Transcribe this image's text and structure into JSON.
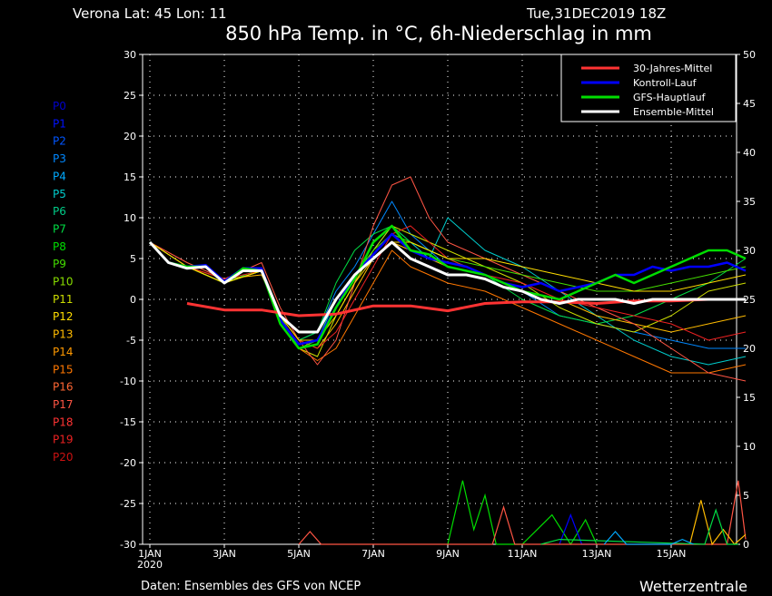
{
  "header": {
    "location": "Verona   Lat: 45 Lon: 11",
    "run": "Tue,31DEC2019 18Z",
    "title": "850 hPa Temp. in °C, 6h-Niederschlag in mm"
  },
  "footer": {
    "source": "Daten: Ensembles des GFS von NCEP",
    "brand": "Wetterzentrale"
  },
  "chart_data": {
    "type": "line",
    "title": "850 hPa Temp. in °C, 6h-Niederschlag in mm",
    "x_unit": "days since 1 JAN 2020 00Z",
    "x_range": [
      0,
      16
    ],
    "x_ticks": [
      {
        "x": 0,
        "label": "1JAN"
      },
      {
        "x": 2,
        "label": "3JAN"
      },
      {
        "x": 4,
        "label": "5JAN"
      },
      {
        "x": 6,
        "label": "7JAN"
      },
      {
        "x": 8,
        "label": "9JAN"
      },
      {
        "x": 10,
        "label": "11JAN"
      },
      {
        "x": 12,
        "label": "13JAN"
      },
      {
        "x": 14,
        "label": "15JAN"
      }
    ],
    "x_year_label": "2020",
    "y_left": {
      "range": [
        -30,
        30
      ],
      "ticks": [
        30,
        25,
        20,
        15,
        10,
        5,
        0,
        -5,
        -10,
        -15,
        -20,
        -25,
        -30
      ]
    },
    "y_right": {
      "range": [
        0,
        50
      ],
      "ticks": [
        50,
        45,
        40,
        35,
        30,
        25,
        20,
        15,
        10,
        5,
        0
      ]
    },
    "grid": true,
    "legend_position": "top-right",
    "legend": [
      {
        "label": "30-Jahres-Mittel",
        "color": "#ff3333"
      },
      {
        "label": "Kontroll-Lauf",
        "color": "#0000ff"
      },
      {
        "label": "GFS-Hauptlauf",
        "color": "#00dd00"
      },
      {
        "label": "Ensemble-Mittel",
        "color": "#ffffff"
      }
    ],
    "members": [
      {
        "name": "P0",
        "color": "#0000cc"
      },
      {
        "name": "P1",
        "color": "#0011ff"
      },
      {
        "name": "P2",
        "color": "#0055ff"
      },
      {
        "name": "P3",
        "color": "#0088ff"
      },
      {
        "name": "P4",
        "color": "#00aaff"
      },
      {
        "name": "P5",
        "color": "#00cccc"
      },
      {
        "name": "P6",
        "color": "#00cc88"
      },
      {
        "name": "P7",
        "color": "#00dd44"
      },
      {
        "name": "P8",
        "color": "#00dd00"
      },
      {
        "name": "P9",
        "color": "#44dd00"
      },
      {
        "name": "P10",
        "color": "#88dd00"
      },
      {
        "name": "P11",
        "color": "#ccdd00"
      },
      {
        "name": "P12",
        "color": "#ffdd00"
      },
      {
        "name": "P13",
        "color": "#ffbb00"
      },
      {
        "name": "P14",
        "color": "#ff9900"
      },
      {
        "name": "P15",
        "color": "#ff7700"
      },
      {
        "name": "P16",
        "color": "#ff6633"
      },
      {
        "name": "P17",
        "color": "#ff5544"
      },
      {
        "name": "P18",
        "color": "#ff3333"
      },
      {
        "name": "P19",
        "color": "#ee2222"
      },
      {
        "name": "P20",
        "color": "#cc1111"
      }
    ],
    "series": [
      {
        "name": "30-Jahres-Mittel",
        "color": "#ff3333",
        "width": 3,
        "x": [
          1,
          2,
          3,
          4,
          5,
          6,
          7,
          8,
          9,
          10,
          11,
          12,
          13,
          14,
          15,
          16
        ],
        "y": [
          -0.5,
          -1.3,
          -1.3,
          -2,
          -1.8,
          -0.8,
          -0.8,
          -1.4,
          -0.5,
          -0.3,
          -0.3,
          -0.5,
          -0.2,
          -0.2,
          0,
          0
        ]
      },
      {
        "name": "Ensemble-Mittel",
        "color": "#ffffff",
        "width": 3,
        "x": [
          0,
          0.5,
          1,
          1.5,
          2,
          2.5,
          3,
          3.5,
          4,
          4.5,
          5,
          5.5,
          6,
          6.5,
          7,
          7.5,
          8,
          8.5,
          9,
          9.5,
          10,
          10.5,
          11,
          11.5,
          12,
          12.5,
          13,
          13.5,
          14,
          14.5,
          15,
          15.5,
          16
        ],
        "y": [
          7,
          4.5,
          3.8,
          4,
          2,
          3.5,
          3.5,
          -2,
          -4,
          -4,
          0,
          3,
          5,
          7,
          5,
          4,
          3,
          3,
          2.5,
          1.5,
          1,
          0,
          -0.5,
          0,
          0,
          0,
          -0.5,
          0,
          0,
          0,
          0,
          0,
          0
        ]
      },
      {
        "name": "Kontroll-Lauf",
        "color": "#0000ff",
        "width": 2.5,
        "x": [
          0,
          0.5,
          1,
          1.5,
          2,
          2.5,
          3,
          3.5,
          4,
          4.5,
          5,
          5.5,
          6,
          6.5,
          7,
          7.5,
          8,
          8.5,
          9,
          9.5,
          10,
          10.5,
          11,
          11.5,
          12,
          12.5,
          13,
          13.5,
          14,
          14.5,
          15,
          15.5,
          16
        ],
        "y": [
          7,
          4.5,
          4,
          4.2,
          2.2,
          3.8,
          3.8,
          -2.5,
          -5.5,
          -5,
          -1,
          3,
          5.5,
          8,
          6,
          5,
          4.5,
          4,
          3,
          2,
          1.5,
          2,
          1,
          1.5,
          2,
          3,
          3,
          4,
          3.5,
          4,
          4,
          4.5,
          3.5
        ]
      },
      {
        "name": "GFS-Hauptlauf",
        "color": "#00dd00",
        "width": 2.5,
        "x": [
          0,
          0.5,
          1,
          1.5,
          2,
          2.5,
          3,
          3.5,
          4,
          4.5,
          5,
          5.5,
          6,
          6.5,
          7,
          7.5,
          8,
          8.5,
          9,
          9.5,
          10,
          10.5,
          11,
          11.5,
          12,
          12.5,
          13,
          13.5,
          14,
          14.5,
          15,
          15.5,
          16
        ],
        "y": [
          7,
          4.5,
          4,
          4,
          2,
          3.8,
          3.5,
          -3,
          -6,
          -5.5,
          -1,
          2.5,
          7,
          9,
          6,
          5.5,
          4,
          3.5,
          3,
          2,
          1,
          0.5,
          0,
          1,
          2,
          3,
          2,
          3,
          4,
          5,
          6,
          6,
          5
        ]
      },
      {
        "name": "P3",
        "color": "#0088ff",
        "width": 1,
        "x": [
          0,
          1,
          2,
          3,
          3.5,
          4,
          4.5,
          5,
          5.5,
          6,
          6.5,
          7,
          7.5,
          8,
          9,
          10,
          11,
          12,
          13,
          14,
          15,
          16
        ],
        "y": [
          7,
          4,
          2,
          3.5,
          -2,
          -5,
          -4,
          1,
          4,
          8,
          12,
          8,
          6,
          4,
          3,
          1,
          -2,
          -3,
          -4,
          -5,
          -6,
          -6
        ]
      },
      {
        "name": "P5",
        "color": "#00cccc",
        "width": 1,
        "x": [
          0,
          1,
          2,
          3,
          3.5,
          4,
          4.5,
          5,
          5.5,
          6,
          6.5,
          7,
          7.5,
          8,
          9,
          10,
          11,
          12,
          13,
          14,
          15,
          16
        ],
        "y": [
          7,
          4,
          2,
          3.5,
          -2,
          -6,
          -5,
          0,
          3,
          6,
          9,
          7,
          5,
          10,
          6,
          4,
          1,
          -2,
          -5,
          -7,
          -8,
          -7
        ]
      },
      {
        "name": "P7",
        "color": "#00dd44",
        "width": 1,
        "x": [
          0,
          1,
          2,
          3,
          3.5,
          4,
          4.5,
          5,
          5.5,
          6,
          6.5,
          7,
          7.5,
          8,
          9,
          10,
          11,
          12,
          13,
          14,
          15,
          16
        ],
        "y": [
          7,
          4,
          2,
          3.8,
          -2,
          -5,
          -4,
          2,
          6,
          8,
          9,
          7,
          6,
          5,
          3,
          0,
          -2,
          -3,
          -2,
          0,
          2,
          5
        ]
      },
      {
        "name": "P11",
        "color": "#ccdd00",
        "width": 1,
        "x": [
          0,
          1,
          2,
          3,
          3.5,
          4,
          4.5,
          5,
          5.5,
          6,
          6.5,
          7,
          7.5,
          8,
          9,
          10,
          11,
          12,
          13,
          14,
          15,
          16
        ],
        "y": [
          7,
          4,
          2,
          3.5,
          -3,
          -6,
          -7,
          -2,
          2,
          6,
          9,
          8,
          7,
          6,
          4,
          2,
          -1,
          -3,
          -4,
          -2,
          1,
          2
        ]
      },
      {
        "name": "P13",
        "color": "#ffbb00",
        "width": 1,
        "x": [
          0,
          1,
          2,
          3,
          3.5,
          4,
          4.5,
          5,
          5.5,
          6,
          6.5,
          7,
          7.5,
          8,
          9,
          10,
          11,
          12,
          13,
          14,
          15,
          16
        ],
        "y": [
          7,
          4,
          2.5,
          3,
          -2,
          -5,
          -6,
          -3,
          1,
          5,
          7,
          6,
          5,
          4,
          3,
          1,
          0,
          -2,
          -3,
          -4,
          -3,
          -2
        ]
      },
      {
        "name": "P15",
        "color": "#ff7700",
        "width": 1,
        "x": [
          0,
          1,
          2,
          3,
          3.5,
          4,
          4.5,
          5,
          5.5,
          6,
          6.5,
          7,
          7.5,
          8,
          9,
          10,
          11,
          12,
          13,
          14,
          15,
          16
        ],
        "y": [
          7,
          4,
          2,
          3.5,
          -2,
          -6,
          -7.5,
          -6,
          -2,
          2,
          6,
          4,
          3,
          2,
          1,
          -1,
          -3,
          -5,
          -7,
          -9,
          -9,
          -8
        ]
      },
      {
        "name": "P17",
        "color": "#ff5544",
        "width": 1,
        "x": [
          0,
          1,
          2,
          3,
          3.5,
          4,
          4.5,
          5,
          5.5,
          6,
          6.5,
          7,
          7.5,
          8,
          9,
          10,
          11,
          12,
          13,
          14,
          15,
          16
        ],
        "y": [
          7,
          4.5,
          2.5,
          4.5,
          -1,
          -5,
          -8,
          -5,
          2,
          9,
          14,
          15,
          10,
          7,
          5,
          3,
          1,
          -1,
          -3,
          -6,
          -9,
          -10
        ]
      },
      {
        "name": "P19",
        "color": "#ee2222",
        "width": 1,
        "x": [
          0,
          1,
          2,
          3,
          3.5,
          4,
          4.5,
          5,
          5.5,
          6,
          6.5,
          7,
          7.5,
          8,
          9,
          10,
          11,
          12,
          13,
          14,
          15,
          16
        ],
        "y": [
          7,
          4,
          2.5,
          3.5,
          -2,
          -5,
          -6,
          -4,
          0,
          4,
          8,
          9,
          7,
          5,
          3,
          2,
          0,
          -1,
          -2,
          -3,
          -5,
          -4
        ]
      },
      {
        "name": "P9",
        "color": "#44dd00",
        "width": 1,
        "x": [
          0,
          1,
          2,
          3,
          3.5,
          4,
          4.5,
          5,
          5.5,
          6,
          6.5,
          7,
          7.5,
          8,
          9,
          10,
          11,
          12,
          13,
          14,
          15,
          16
        ],
        "y": [
          7,
          4,
          2,
          3.5,
          -2,
          -6,
          -5,
          -1,
          3,
          6,
          8,
          7,
          6,
          5,
          4,
          3,
          2,
          1,
          1,
          2,
          3,
          4
        ]
      },
      {
        "name": "P12",
        "color": "#ffdd00",
        "width": 1,
        "x": [
          0,
          1,
          2,
          3,
          3.5,
          4,
          4.5,
          5,
          5.5,
          6,
          6.5,
          7,
          7.5,
          8,
          9,
          10,
          11,
          12,
          13,
          14,
          15,
          16
        ],
        "y": [
          7,
          4,
          2,
          3.5,
          -2,
          -5,
          -5,
          -2,
          2,
          5,
          7,
          7,
          6,
          5,
          5,
          4,
          3,
          2,
          1,
          1,
          2,
          3
        ]
      }
    ],
    "precip_axis": "right",
    "precip_series": [
      {
        "name": "GFS-Hauptlauf",
        "color": "#00dd00",
        "x": [
          8.0,
          8.4,
          8.7,
          9.0,
          9.3,
          10.0,
          10.4,
          10.8,
          11.3,
          11.7,
          12.0
        ],
        "y": [
          0,
          6.5,
          1.5,
          5,
          0,
          0,
          1.5,
          3,
          0,
          2.5,
          0
        ]
      },
      {
        "name": "Kontroll-Lauf",
        "color": "#0000ff",
        "x": [
          11.0,
          11.3,
          11.6,
          12.0
        ],
        "y": [
          0,
          3,
          0,
          0
        ]
      },
      {
        "name": "P17",
        "color": "#ff5544",
        "x": [
          4.0,
          4.3,
          4.6,
          9.2,
          9.5,
          9.8,
          15.5,
          15.8,
          16.0
        ],
        "y": [
          0,
          1.3,
          0,
          0,
          3.8,
          0,
          0,
          6.5,
          0.5
        ]
      },
      {
        "name": "P13",
        "color": "#ffbb00",
        "x": [
          14.5,
          14.8,
          15.1,
          15.4,
          15.7,
          16.0
        ],
        "y": [
          0,
          4.5,
          0,
          1.5,
          0,
          1
        ]
      },
      {
        "name": "P7",
        "color": "#00dd44",
        "x": [
          10.5,
          11.0,
          14.9,
          15.2,
          15.5,
          15.8
        ],
        "y": [
          0,
          0.5,
          0,
          3.5,
          0,
          0
        ]
      },
      {
        "name": "P4",
        "color": "#00aaff",
        "x": [
          12.2,
          12.5,
          12.8,
          14.0,
          14.3,
          14.6
        ],
        "y": [
          0,
          1.3,
          0,
          0,
          0.5,
          0
        ]
      }
    ]
  }
}
